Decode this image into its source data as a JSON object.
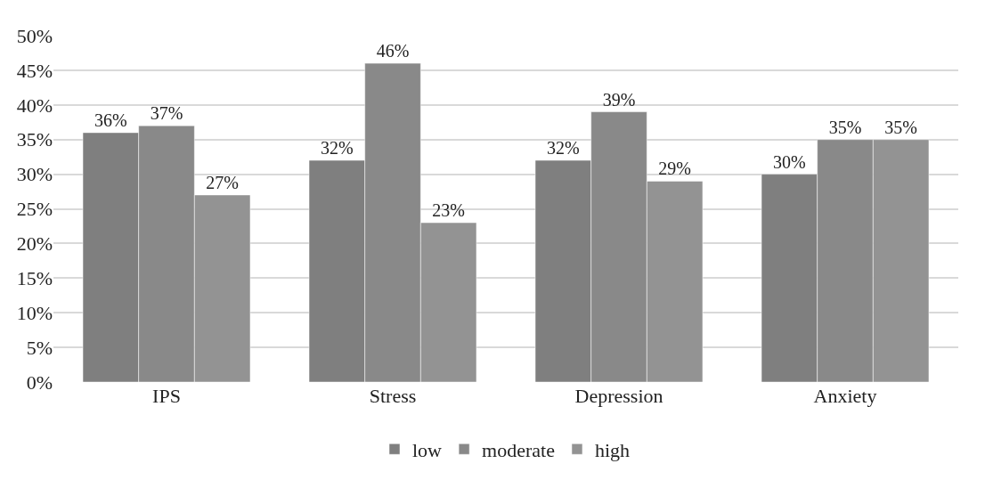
{
  "chart_data": {
    "type": "bar",
    "categories": [
      "IPS",
      "Stress",
      "Depression",
      "Anxiety"
    ],
    "series": [
      {
        "name": "low",
        "color": "#7f7f7f",
        "values": [
          36,
          32,
          32,
          30
        ],
        "value_labels": [
          "36%",
          "32%",
          "32%",
          "30%"
        ]
      },
      {
        "name": "moderate",
        "color": "#898989",
        "values": [
          37,
          46,
          39,
          35
        ],
        "value_labels": [
          "37%",
          "46%",
          "39%",
          "35%"
        ]
      },
      {
        "name": "high",
        "color": "#939393",
        "values": [
          27,
          23,
          29,
          35
        ],
        "value_labels": [
          "27%",
          "23%",
          "29%",
          "35%"
        ]
      }
    ],
    "ylim": [
      0,
      50
    ],
    "yticks": [
      {
        "value": 0,
        "label": "0%"
      },
      {
        "value": 5,
        "label": "5%"
      },
      {
        "value": 10,
        "label": "10%"
      },
      {
        "value": 15,
        "label": "15%"
      },
      {
        "value": 20,
        "label": "20%"
      },
      {
        "value": 25,
        "label": "25%"
      },
      {
        "value": 30,
        "label": "30%"
      },
      {
        "value": 35,
        "label": "35%"
      },
      {
        "value": 40,
        "label": "40%"
      },
      {
        "value": 45,
        "label": "45%"
      },
      {
        "value": 50,
        "label": "50%"
      }
    ],
    "grid": "y",
    "legend": "bottom"
  }
}
